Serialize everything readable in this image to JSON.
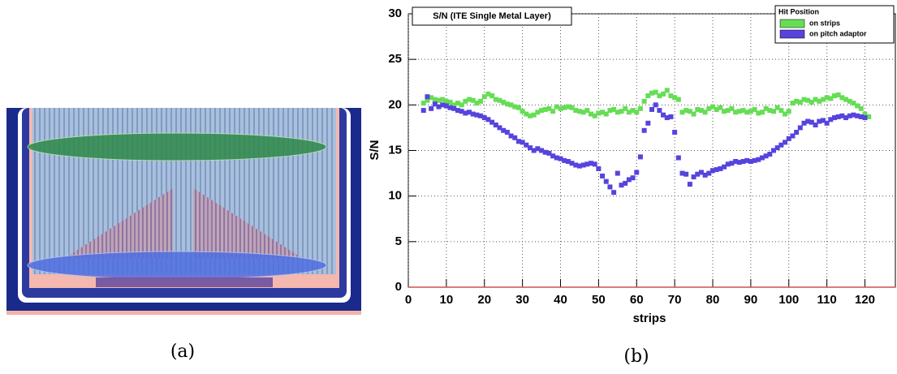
{
  "captions": [
    "(a)",
    "(b)"
  ],
  "chart_data": {
    "type": "scatter",
    "title": "S/N (ITE Single Metal Layer)",
    "x_label": "strips",
    "y_label": "S/N",
    "legend_title": "Hit Position",
    "legend": "upper right",
    "grid": true,
    "xlim": [
      0,
      128
    ],
    "ylim": [
      0,
      30
    ],
    "xticks": [
      0,
      10,
      20,
      30,
      40,
      50,
      60,
      70,
      80,
      90,
      100,
      110,
      120
    ],
    "yticks": [
      0,
      5,
      10,
      15,
      20,
      25,
      30
    ],
    "x": [
      4,
      5,
      6,
      7,
      8,
      9,
      10,
      11,
      12,
      13,
      14,
      15,
      16,
      17,
      18,
      19,
      20,
      21,
      22,
      23,
      24,
      25,
      26,
      27,
      28,
      29,
      30,
      31,
      32,
      33,
      34,
      35,
      36,
      37,
      38,
      39,
      40,
      41,
      42,
      43,
      44,
      45,
      46,
      47,
      48,
      49,
      50,
      51,
      52,
      53,
      54,
      55,
      56,
      57,
      58,
      59,
      60,
      61,
      62,
      63,
      64,
      65,
      66,
      67,
      68,
      69,
      70,
      71,
      72,
      73,
      74,
      75,
      76,
      77,
      78,
      79,
      80,
      81,
      82,
      83,
      84,
      85,
      86,
      87,
      88,
      89,
      90,
      91,
      92,
      93,
      94,
      95,
      96,
      97,
      98,
      99,
      100,
      101,
      102,
      103,
      104,
      105,
      106,
      107,
      108,
      109,
      110,
      111,
      112,
      113,
      114,
      115,
      116,
      117,
      118,
      119,
      120,
      121
    ],
    "series": [
      {
        "name": "on strips",
        "color": "#66dd55",
        "values": [
          20.2,
          20.5,
          20.8,
          20.6,
          20.5,
          20.6,
          20.4,
          20.3,
          20.0,
          20.2,
          20.0,
          20.4,
          20.6,
          20.5,
          20.2,
          20.4,
          20.9,
          21.2,
          21.0,
          20.6,
          20.5,
          20.3,
          20.1,
          20.0,
          19.8,
          19.7,
          19.3,
          19.0,
          18.8,
          18.9,
          19.2,
          19.4,
          19.5,
          19.6,
          19.3,
          19.8,
          19.6,
          19.7,
          19.8,
          19.7,
          19.4,
          19.3,
          19.2,
          19.4,
          19.0,
          18.8,
          19.1,
          19.2,
          19.0,
          19.4,
          19.5,
          19.2,
          19.3,
          19.6,
          19.2,
          19.4,
          19.2,
          19.6,
          20.4,
          21.0,
          21.3,
          21.4,
          21.0,
          21.2,
          21.6,
          21.0,
          20.8,
          20.6,
          19.2,
          19.4,
          19.3,
          19.0,
          19.5,
          19.4,
          19.2,
          19.6,
          19.8,
          19.5,
          19.7,
          19.3,
          19.4,
          19.6,
          19.2,
          19.3,
          19.4,
          19.2,
          19.3,
          19.5,
          19.1,
          19.2,
          19.6,
          19.4,
          19.3,
          19.7,
          19.4,
          19.0,
          19.3,
          20.2,
          20.4,
          20.3,
          20.6,
          20.5,
          20.3,
          20.6,
          20.4,
          20.6,
          20.8,
          20.7,
          21.0,
          21.1,
          20.8,
          20.6,
          20.4,
          20.2,
          19.9,
          19.6,
          19.0,
          18.7
        ]
      },
      {
        "name": "on pitch adaptor",
        "color": "#5544dd",
        "values": [
          19.4,
          20.9,
          19.6,
          20.1,
          19.8,
          20.0,
          19.9,
          19.7,
          19.6,
          19.4,
          19.3,
          19.1,
          19.2,
          19.0,
          18.9,
          18.8,
          18.6,
          18.4,
          18.1,
          17.8,
          17.5,
          17.2,
          17.0,
          16.6,
          16.4,
          16.0,
          15.9,
          15.6,
          15.3,
          15.0,
          15.2,
          15.0,
          14.8,
          14.7,
          14.4,
          14.2,
          14.1,
          13.9,
          13.8,
          13.6,
          13.4,
          13.3,
          13.4,
          13.5,
          13.6,
          13.5,
          13.0,
          12.2,
          11.6,
          11.0,
          10.4,
          12.5,
          11.2,
          11.4,
          11.8,
          12.0,
          12.6,
          14.3,
          17.2,
          18.0,
          19.5,
          20.0,
          19.4,
          18.9,
          18.6,
          18.7,
          17.0,
          14.2,
          12.5,
          12.4,
          11.3,
          12.1,
          12.4,
          12.6,
          12.3,
          12.5,
          12.8,
          12.9,
          13.0,
          13.2,
          13.5,
          13.6,
          13.8,
          13.7,
          13.8,
          13.9,
          13.8,
          13.9,
          14.0,
          14.2,
          14.4,
          14.6,
          15.0,
          15.3,
          15.6,
          15.9,
          16.3,
          16.6,
          17.0,
          17.5,
          18.0,
          18.2,
          18.1,
          17.8,
          18.2,
          18.3,
          18.0,
          18.4,
          18.6,
          18.7,
          18.8,
          18.6,
          18.8,
          18.9,
          18.8,
          18.7,
          18.6,
          null
        ]
      }
    ]
  }
}
